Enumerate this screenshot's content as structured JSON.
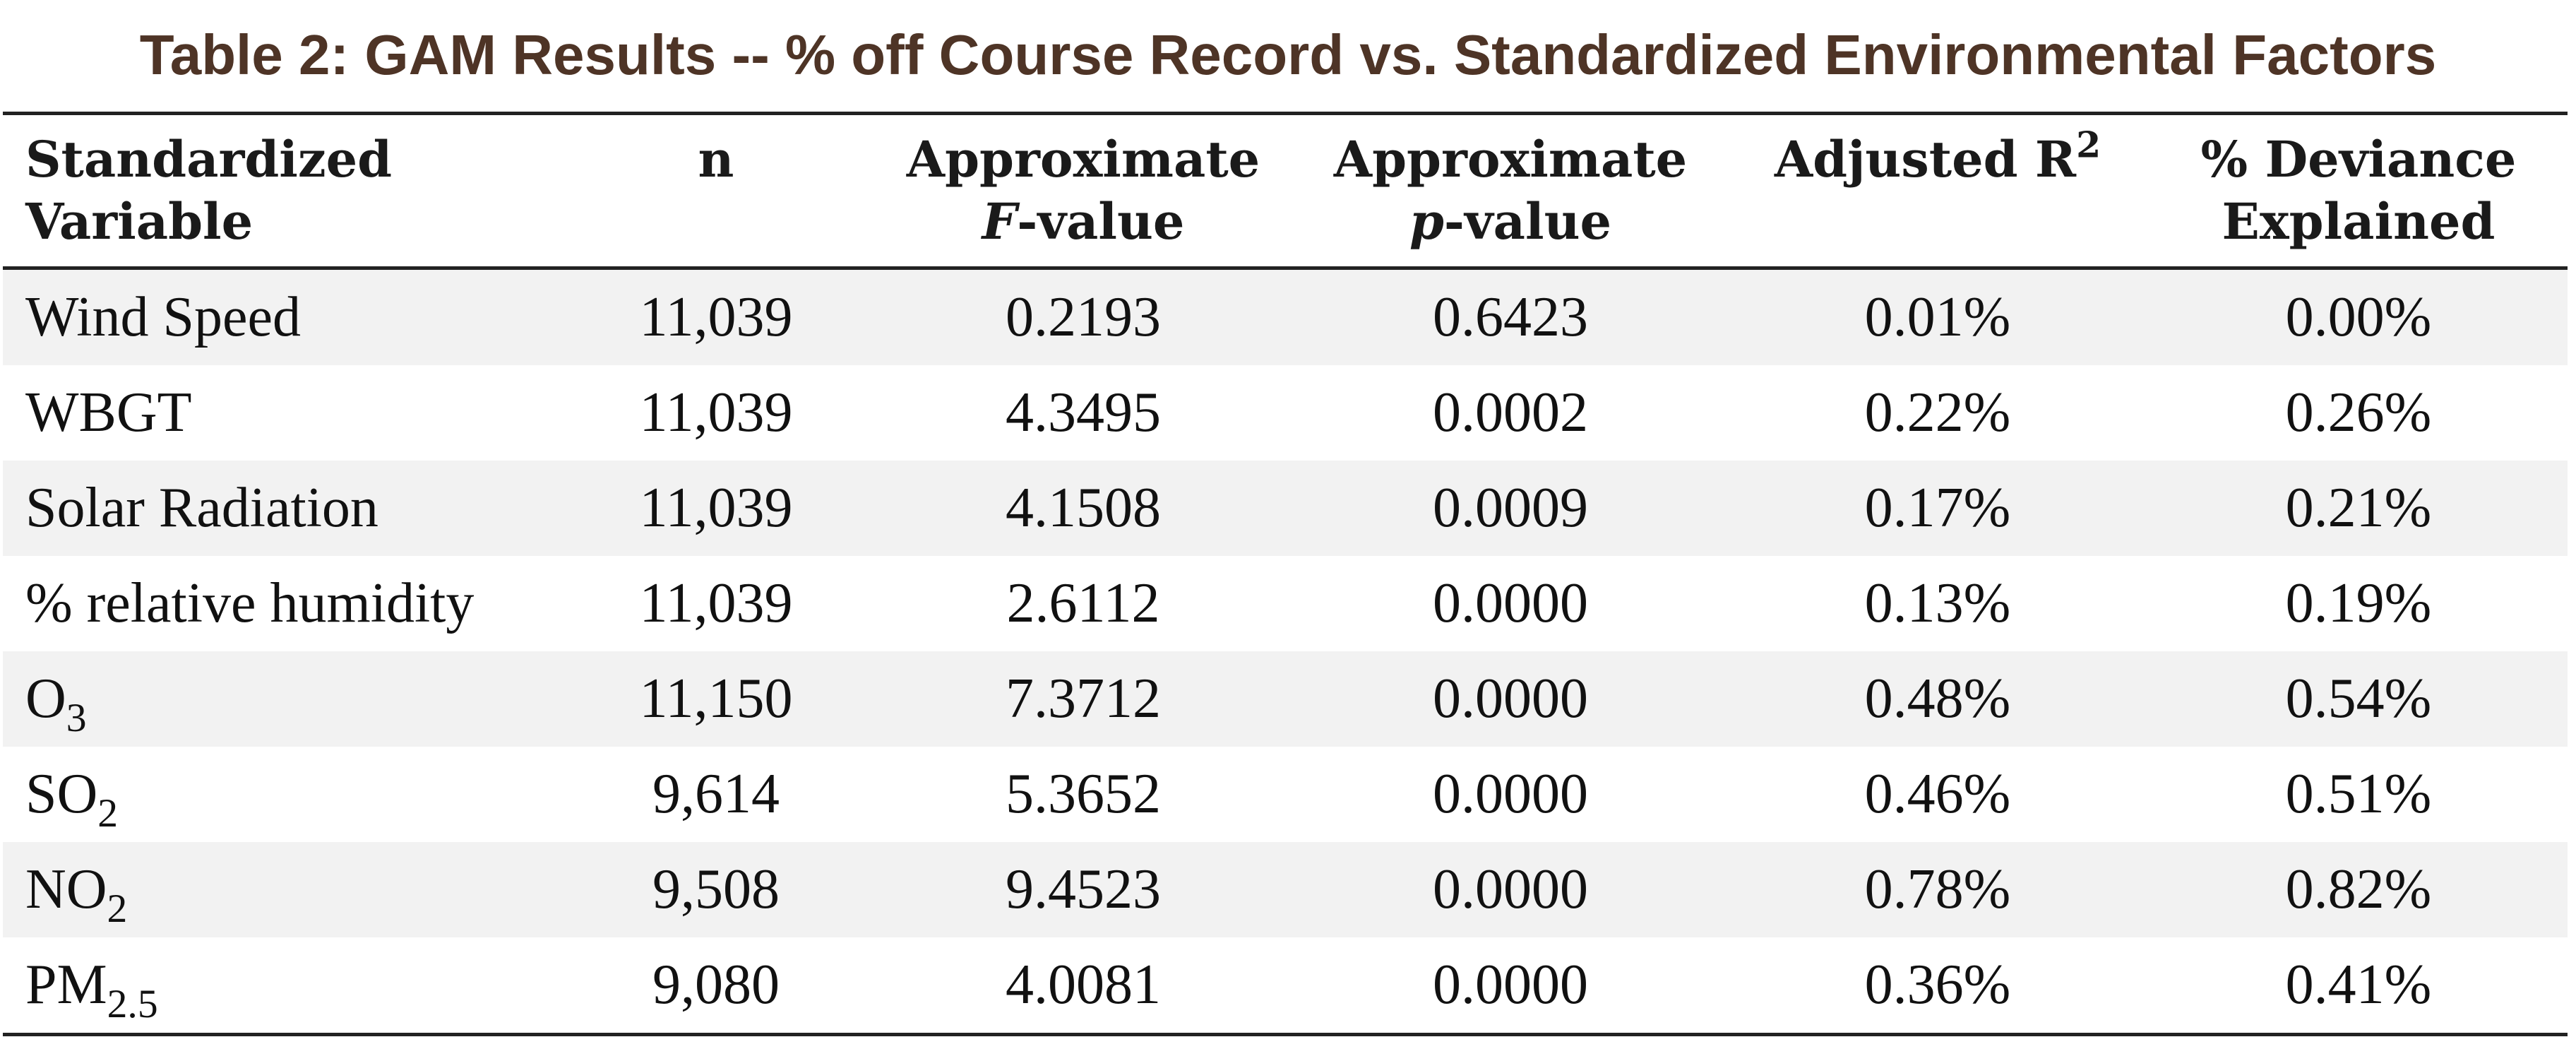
{
  "title": "Table 2: GAM Results -- % off Course Record vs. Standardized Environmental Factors",
  "headers": {
    "variable": [
      "Standardized",
      "Variable"
    ],
    "n": "n",
    "f_value": {
      "line1": "Approximate",
      "italic": "F",
      "rest": "-value"
    },
    "p_value": {
      "line1": "Approximate",
      "italic": "p",
      "rest": "-value"
    },
    "adj_r2": {
      "text": "Adjusted R",
      "sup": "2"
    },
    "deviance": [
      "% Deviance",
      "Explained"
    ]
  },
  "rows": [
    {
      "variable": "Wind Speed",
      "sub": "",
      "n": "11,039",
      "f": "0.2193",
      "p": "0.6423",
      "r2": "0.01%",
      "dev": "0.00%"
    },
    {
      "variable": "WBGT",
      "sub": "",
      "n": "11,039",
      "f": "4.3495",
      "p": "0.0002",
      "r2": "0.22%",
      "dev": "0.26%"
    },
    {
      "variable": "Solar Radiation",
      "sub": "",
      "n": "11,039",
      "f": "4.1508",
      "p": "0.0009",
      "r2": "0.17%",
      "dev": "0.21%"
    },
    {
      "variable": "% relative humidity",
      "sub": "",
      "n": "11,039",
      "f": "2.6112",
      "p": "0.0000",
      "r2": "0.13%",
      "dev": "0.19%"
    },
    {
      "variable": "O",
      "sub": "3",
      "n": "11,150",
      "f": "7.3712",
      "p": "0.0000",
      "r2": "0.48%",
      "dev": "0.54%"
    },
    {
      "variable": "SO",
      "sub": "2",
      "n": "9,614",
      "f": "5.3652",
      "p": "0.0000",
      "r2": "0.46%",
      "dev": "0.51%"
    },
    {
      "variable": "NO",
      "sub": "2",
      "n": "9,508",
      "f": "9.4523",
      "p": "0.0000",
      "r2": "0.78%",
      "dev": "0.82%"
    },
    {
      "variable": "PM",
      "sub": "2.5",
      "n": "9,080",
      "f": "4.0081",
      "p": "0.0000",
      "r2": "0.36%",
      "dev": "0.41%"
    }
  ],
  "colors": {
    "title": "#4e3426",
    "row_shade": "#f2f2f2",
    "rule": "#222222"
  }
}
